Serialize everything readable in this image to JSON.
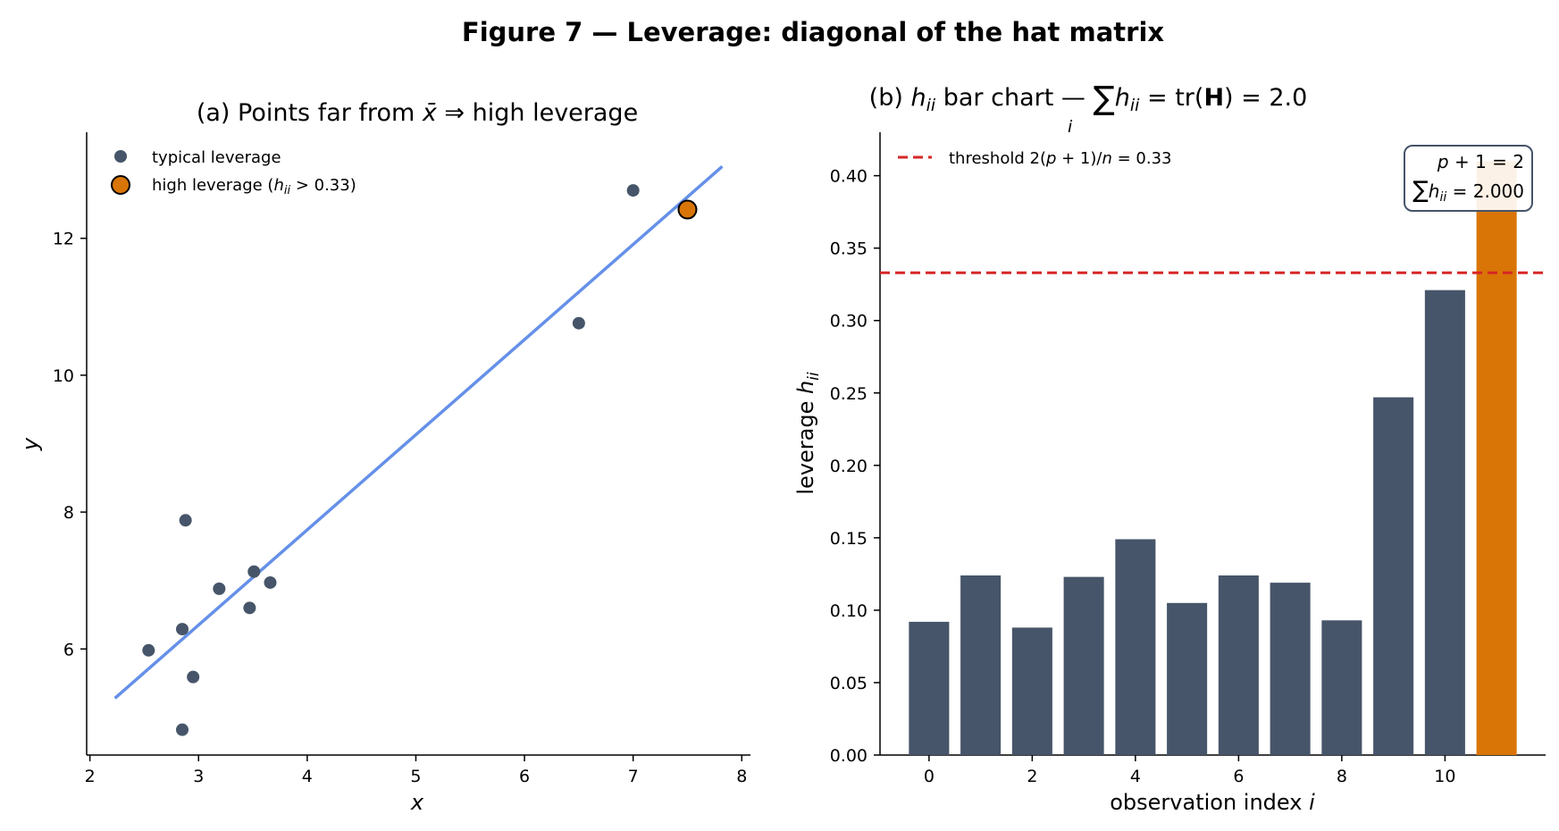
{
  "figure": {
    "title": "Figure 7 — Leverage: diagonal of the hat matrix"
  },
  "colors": {
    "typical": "#465569",
    "high": "#d97506",
    "fit_line": "#6590e8",
    "threshold": "#d62728",
    "axis": "#000000"
  },
  "chart_data": [
    {
      "type": "scatter",
      "title": {
        "prefix": "(a) Points far from ",
        "var": "x̄",
        "arrow": " ⇒ ",
        "suffix": "high leverage"
      },
      "xlabel": "x",
      "ylabel": "y",
      "xlim": [
        1.97,
        8.08
      ],
      "ylim": [
        4.45,
        13.55
      ],
      "xticks": [
        2,
        3,
        4,
        5,
        6,
        7,
        8
      ],
      "yticks": [
        6,
        8,
        10,
        12
      ],
      "grid": false,
      "legend_position": "upper-left",
      "legend": {
        "typical": "typical leverage",
        "high_prefix": "high leverage (",
        "high_var": "h",
        "high_sub": "ii",
        "high_suffix": " > 0.33)"
      },
      "fit_line": {
        "x": [
          2.23,
          7.82
        ],
        "y": [
          5.28,
          13.05
        ]
      },
      "series": [
        {
          "role": "typical",
          "points": [
            [
              2.54,
              5.98
            ],
            [
              2.85,
              4.82
            ],
            [
              2.85,
              6.29
            ],
            [
              2.88,
              7.88
            ],
            [
              2.95,
              5.59
            ],
            [
              3.19,
              6.88
            ],
            [
              3.47,
              6.6
            ],
            [
              3.51,
              7.13
            ],
            [
              3.66,
              6.97
            ],
            [
              6.5,
              10.76
            ],
            [
              7.0,
              12.7
            ]
          ]
        },
        {
          "role": "high",
          "points": [
            [
              7.5,
              12.42
            ]
          ]
        }
      ]
    },
    {
      "type": "bar",
      "title": {
        "prefix": "(b) ",
        "var": "h",
        "sub": "ii",
        "middle": " bar chart — ",
        "sum_sub": "i",
        "eq_var": "h",
        "eq_sub": "ii",
        "rest": " = tr(",
        "bold": "H",
        "end": ") = 2.0"
      },
      "xlabel": {
        "text": "observation index ",
        "var": "i"
      },
      "ylabel": {
        "text": "leverage ",
        "var": "h",
        "sub": "ii"
      },
      "xlim": [
        -0.95,
        11.95
      ],
      "ylim": [
        0,
        0.43
      ],
      "xticks": [
        0,
        2,
        4,
        6,
        8,
        10
      ],
      "yticks": [
        0.0,
        0.05,
        0.1,
        0.15,
        0.2,
        0.25,
        0.3,
        0.35,
        0.4
      ],
      "ytick_labels": [
        "0.00",
        "0.05",
        "0.10",
        "0.15",
        "0.20",
        "0.25",
        "0.30",
        "0.35",
        "0.40"
      ],
      "grid": false,
      "categories": [
        0,
        1,
        2,
        3,
        4,
        5,
        6,
        7,
        8,
        9,
        10,
        11
      ],
      "values": [
        0.092,
        0.124,
        0.088,
        0.123,
        0.149,
        0.105,
        0.124,
        0.119,
        0.093,
        0.247,
        0.321,
        0.41
      ],
      "highlight_index": 11,
      "threshold": 0.333,
      "legend_position": "upper-left",
      "legend": {
        "prefix": "threshold 2(",
        "var": "p",
        "suffix": " + 1)/",
        "var2": "n",
        "end": " = 0.33"
      },
      "annotation": {
        "line1_var": "p",
        "line1_rest": " + 1 = 2",
        "line2_var": "h",
        "line2_sub": "ii",
        "line2_rest": " = 2.000"
      }
    }
  ]
}
